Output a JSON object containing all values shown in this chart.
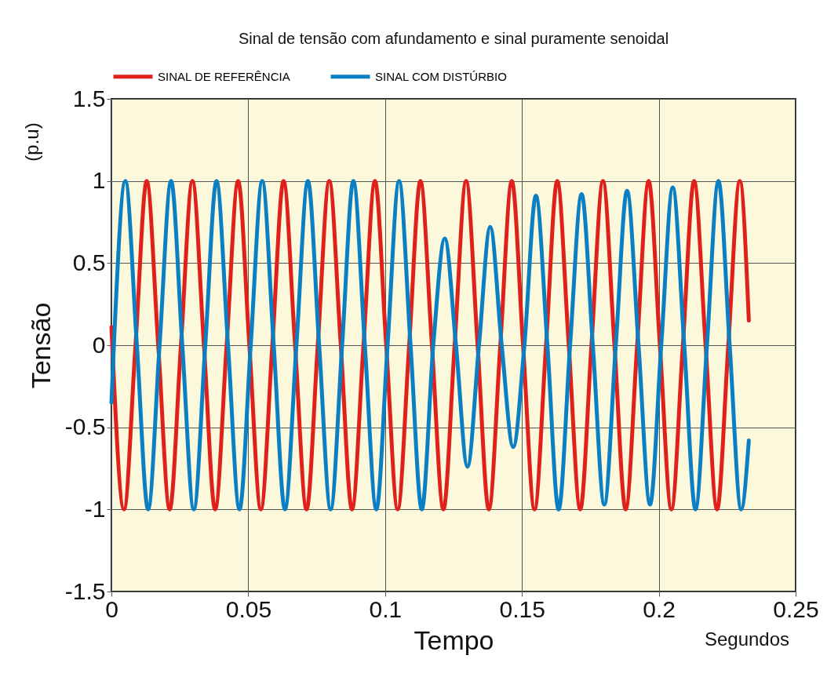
{
  "chart_data": {
    "type": "line",
    "title": "Sinal de tensão com afundamento e sinal puramente senoidal",
    "xlabel": "Tempo",
    "ylabel": "Tensão",
    "annotations": [
      "(p.u)",
      "Segundos"
    ],
    "xlim": [
      0,
      0.25
    ],
    "xticks": [
      0,
      0.05,
      0.1,
      0.15,
      0.2,
      0.25
    ],
    "ylim": [
      -1.5,
      1.5
    ],
    "yticks": [
      -1.5,
      -1,
      -0.5,
      0,
      0.5,
      1,
      1.5
    ],
    "grid": true,
    "legend": "top",
    "line_style": "solid",
    "series": [
      {
        "name": "SINAL DE REFERÊNCIA",
        "color": "#e0201b",
        "x": [
          0,
          0.0046,
          0.0088,
          0.0129,
          0.0171,
          0.0213,
          0.0254,
          0.0296,
          0.0338,
          0.0379,
          0.0421,
          0.0463,
          0.0504,
          0.0546,
          0.0588,
          0.0629,
          0.0671,
          0.0713,
          0.0754,
          0.0796,
          0.0838,
          0.0879,
          0.0921,
          0.0963,
          0.1004,
          0.1046,
          0.1088,
          0.1129,
          0.1171,
          0.1213,
          0.1254,
          0.1296,
          0.1338,
          0.1379,
          0.1421,
          0.1463,
          0.1504,
          0.1546,
          0.1588,
          0.1629,
          0.1671,
          0.1713,
          0.1754,
          0.1796,
          0.1838,
          0.1879,
          0.1921,
          0.1963,
          0.2004,
          0.2046,
          0.2088,
          0.2129,
          0.2171,
          0.2213,
          0.2254,
          0.2296,
          0.2329
        ],
        "values": [
          0.11,
          -1,
          0,
          1,
          0,
          -1,
          0,
          1,
          0,
          -1,
          0,
          1,
          0,
          -1,
          0,
          1,
          0,
          -1,
          0,
          1,
          0,
          -1,
          0,
          1,
          0,
          -1,
          0,
          1,
          0,
          -1,
          0,
          1,
          0,
          -1,
          0,
          1,
          0,
          -1,
          0,
          1,
          0,
          -1,
          0,
          1,
          0,
          -1,
          0,
          1,
          0,
          -1,
          0,
          1,
          0,
          -1,
          0,
          1,
          0.15
        ]
      },
      {
        "name": "SINAL COM DISTÚRBIO",
        "color": "#0a7fc4",
        "x": [
          0,
          0.0009,
          0.0051,
          0.0093,
          0.0134,
          0.0176,
          0.0218,
          0.0259,
          0.0301,
          0.0343,
          0.0384,
          0.0426,
          0.0468,
          0.0509,
          0.0551,
          0.0593,
          0.0634,
          0.0676,
          0.0718,
          0.0759,
          0.0801,
          0.0843,
          0.0884,
          0.0926,
          0.0968,
          0.1009,
          0.1051,
          0.1093,
          0.1134,
          0.1176,
          0.1218,
          0.1259,
          0.1301,
          0.1343,
          0.1384,
          0.1426,
          0.1468,
          0.1509,
          0.1551,
          0.1593,
          0.1634,
          0.1676,
          0.1718,
          0.1759,
          0.1801,
          0.1843,
          0.1884,
          0.1926,
          0.1968,
          0.2009,
          0.2051,
          0.2093,
          0.2134,
          0.2176,
          0.2218,
          0.2259,
          0.2301,
          0.2329
        ],
        "values": [
          -0.35,
          0,
          1,
          0,
          -1,
          0,
          1,
          0,
          -1,
          0,
          1,
          0,
          -1,
          0,
          1,
          0,
          -1,
          0,
          1,
          0,
          -1,
          0,
          1,
          0,
          -1,
          0,
          1,
          0,
          -1,
          0,
          0.65,
          0,
          -0.74,
          0,
          0.72,
          0,
          -0.62,
          0,
          0.91,
          0,
          -1,
          0,
          0.92,
          0,
          -0.97,
          0,
          0.94,
          0,
          -0.97,
          0,
          0.96,
          0,
          -1,
          0,
          1,
          0,
          -1,
          -0.58
        ]
      }
    ]
  }
}
